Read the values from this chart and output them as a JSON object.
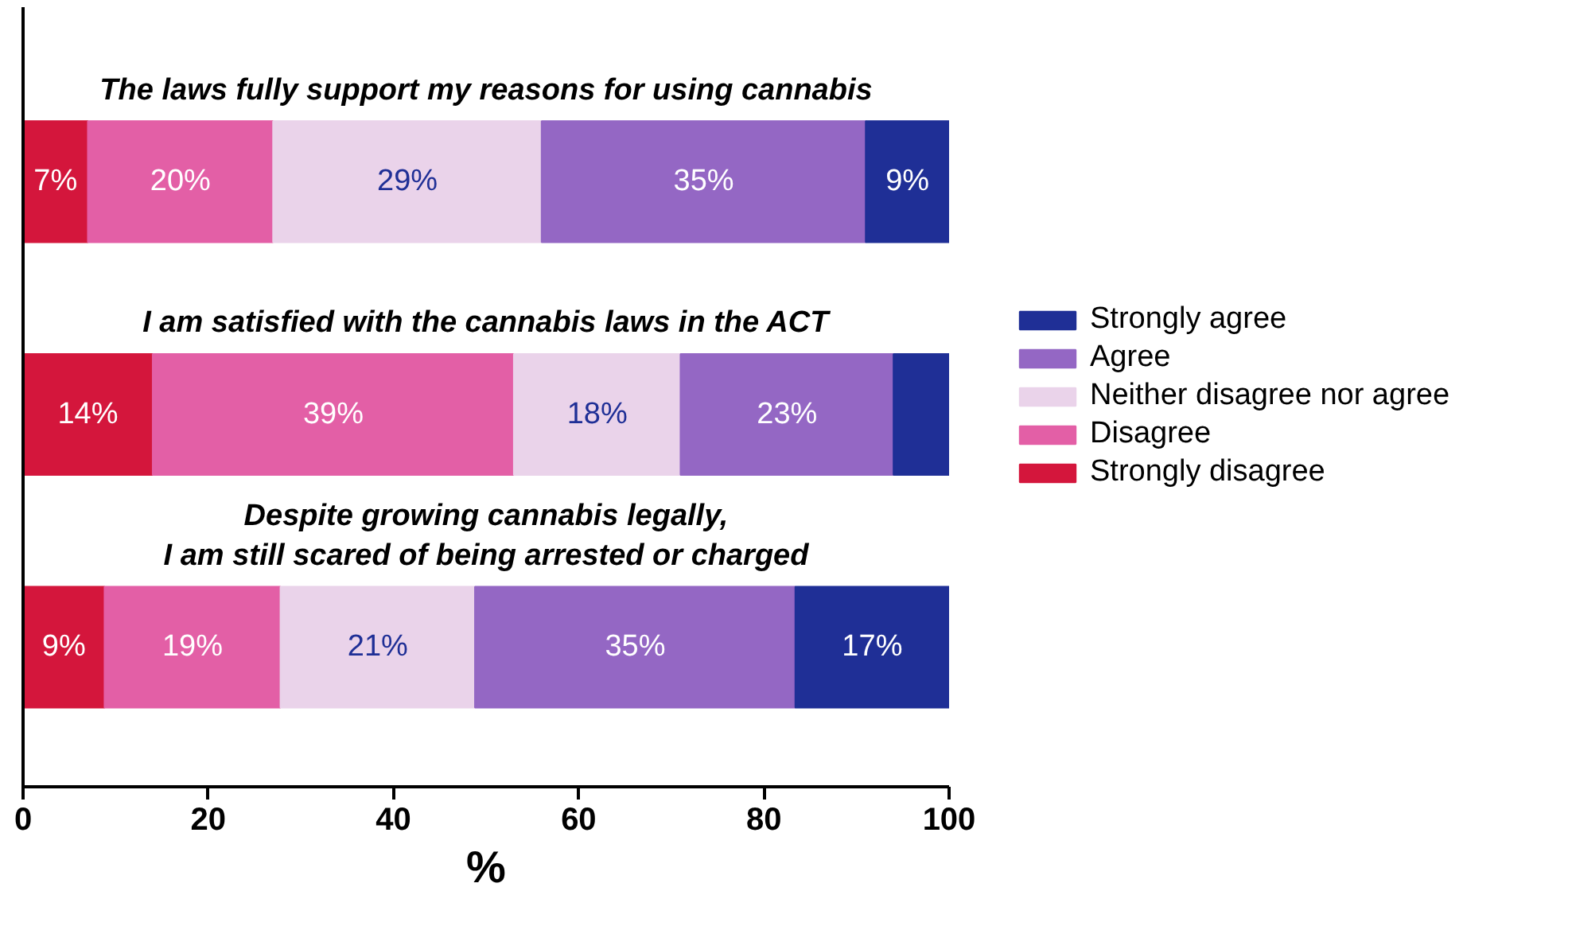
{
  "chart_data": {
    "type": "bar",
    "orientation": "horizontal",
    "stacked": true,
    "xlabel": "%",
    "categories": [
      "The laws fully support my reasons for using cannabis",
      "I am satisfied with the cannabis laws in the ACT",
      "Despite growing cannabis legally,\nI am still scared of being arrested or charged"
    ],
    "series": [
      {
        "name": "Strongly disagree",
        "color": "#d4163c",
        "values": [
          7,
          14,
          8.8
        ],
        "value_labels": [
          "7%",
          "14%",
          "9%"
        ]
      },
      {
        "name": "Disagree",
        "color": "#e35fa6",
        "values": [
          20,
          39,
          19
        ],
        "value_labels": [
          "20%",
          "39%",
          "19%"
        ]
      },
      {
        "name": "Neither disagree nor agree",
        "color": "#ead3ea",
        "values": [
          29,
          18,
          21
        ],
        "value_labels": [
          "29%",
          "18%",
          "21%"
        ]
      },
      {
        "name": "Agree",
        "color": "#9467c4",
        "values": [
          35,
          23,
          34.6
        ],
        "value_labels": [
          "35%",
          "23%",
          "35%"
        ]
      },
      {
        "name": "Strongly agree",
        "color": "#1f2f96",
        "values": [
          9,
          6,
          16.6
        ],
        "value_labels": [
          "9%",
          null,
          "17%"
        ]
      }
    ],
    "xlim": [
      0,
      100
    ],
    "xticks": [
      0,
      20,
      40,
      60,
      80,
      100
    ],
    "grid": false,
    "legend": "right"
  }
}
